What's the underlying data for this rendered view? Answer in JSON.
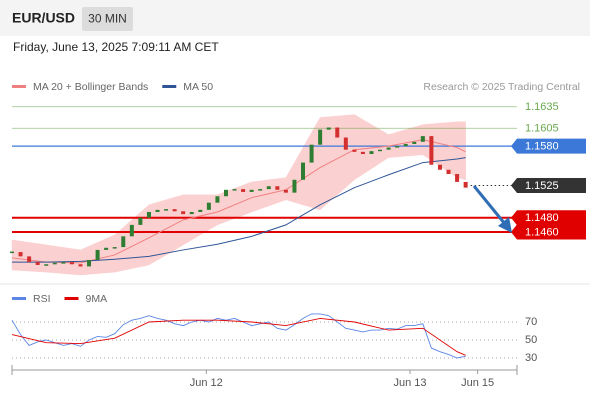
{
  "header": {
    "symbol": "EUR/USD",
    "interval": "30 MIN",
    "timestamp": "Friday, June 13, 2025 7:09:11 AM CET"
  },
  "chart_data": [
    {
      "type": "candlestick",
      "legend": [
        {
          "name": "MA 20 + Bollinger Bands",
          "color": "#f08080"
        },
        {
          "name": "MA 50",
          "color": "#2f5597"
        }
      ],
      "credit": "Research © 2025 Trading Central",
      "xlim": [
        0,
        59
      ],
      "ylim": [
        1.14,
        1.165
      ],
      "xticks": [
        {
          "value": 22.7,
          "label": "Jun 12"
        },
        {
          "value": 46.5,
          "label": "Jun 13"
        },
        {
          "value": 54.4,
          "label": "Jun 15"
        }
      ],
      "up_color": "#2e7d32",
      "down_color": "#d32f2f",
      "band_color": "#fbd0d0",
      "close": [
        1.1432,
        1.1426,
        1.1418,
        1.1414,
        1.1415,
        1.1417,
        1.1418,
        1.1415,
        1.1412,
        1.1421,
        1.1435,
        1.1438,
        1.1439,
        1.1454,
        1.147,
        1.148,
        1.1488,
        1.1491,
        1.1492,
        1.1489,
        1.1485,
        1.1488,
        1.1491,
        1.1501,
        1.151,
        1.1519,
        1.152,
        1.1516,
        1.1519,
        1.152,
        1.1524,
        1.1519,
        1.1515,
        1.1533,
        1.1557,
        1.1582,
        1.1603,
        1.1606,
        1.1592,
        1.1575,
        1.1572,
        1.1569,
        1.1573,
        1.1575,
        1.1578,
        1.158,
        1.1583,
        1.1586,
        1.1594,
        1.1554,
        1.1547,
        1.1541,
        1.153,
        1.1522
      ],
      "indicator_x": [
        0,
        4,
        8,
        12,
        16,
        20,
        24,
        28,
        32,
        36,
        40,
        44,
        48,
        52,
        53
      ],
      "ma20": [
        1.1424,
        1.1418,
        1.1417,
        1.1428,
        1.1452,
        1.1477,
        1.1488,
        1.1508,
        1.1519,
        1.155,
        1.1575,
        1.158,
        1.1589,
        1.1578,
        1.1572
      ],
      "bb_upper": [
        1.1449,
        1.1442,
        1.1435,
        1.1456,
        1.1498,
        1.1512,
        1.1512,
        1.153,
        1.1536,
        1.162,
        1.1624,
        1.1596,
        1.161,
        1.1614,
        1.1614
      ],
      "bb_lower": [
        1.1407,
        1.1404,
        1.14,
        1.1404,
        1.1414,
        1.1442,
        1.147,
        1.1488,
        1.1505,
        1.1491,
        1.1533,
        1.1564,
        1.1568,
        1.1536,
        1.1533
      ],
      "ma50": [
        1.1418,
        1.1418,
        1.1419,
        1.1422,
        1.1426,
        1.1435,
        1.1443,
        1.1454,
        1.147,
        1.1498,
        1.1522,
        1.154,
        1.1557,
        1.1562,
        1.1564
      ],
      "levels": [
        {
          "value": 1.1635,
          "label": "1.1635",
          "color": "#6aa84f",
          "box": false,
          "line": "solid",
          "width": 0.8
        },
        {
          "value": 1.1605,
          "label": "1.1605",
          "color": "#6aa84f",
          "box": false,
          "line": "solid",
          "width": 0.8
        },
        {
          "value": 1.158,
          "label": "1.1580",
          "color": "#3c78d8",
          "box": true,
          "line": "solid",
          "width": 1.2
        },
        {
          "value": 1.1525,
          "label": "1.1525",
          "color": "#333333",
          "box": true,
          "line": "dotted",
          "width": 1
        },
        {
          "value": 1.148,
          "label": "1.1480",
          "color": "#e00000",
          "box": true,
          "line": "solid",
          "width": 2
        },
        {
          "value": 1.146,
          "label": "1.1460",
          "color": "#e00000",
          "box": true,
          "line": "solid",
          "width": 2
        }
      ]
    },
    {
      "type": "line",
      "ylim": [
        20,
        80
      ],
      "yticks": [
        30,
        50,
        70
      ],
      "series": [
        {
          "name": "RSI",
          "color": "#5b86e5",
          "values": [
            72,
            56,
            44,
            48,
            50,
            47,
            44,
            46,
            43,
            50,
            54,
            53,
            57,
            67,
            72,
            74,
            77,
            74,
            72,
            68,
            66,
            70,
            72,
            70,
            74,
            72,
            74,
            70,
            66,
            68,
            70,
            63,
            61,
            67,
            74,
            79,
            79,
            77,
            70,
            63,
            61,
            59,
            61,
            61,
            63,
            62,
            66,
            66,
            68,
            41,
            37,
            34,
            30,
            32
          ]
        },
        {
          "name": "9MA",
          "color": "#e00000",
          "values": [
            56,
            47,
            46,
            52,
            70,
            72,
            72,
            70,
            66,
            74,
            70,
            61,
            63,
            37,
            33
          ]
        }
      ]
    }
  ]
}
